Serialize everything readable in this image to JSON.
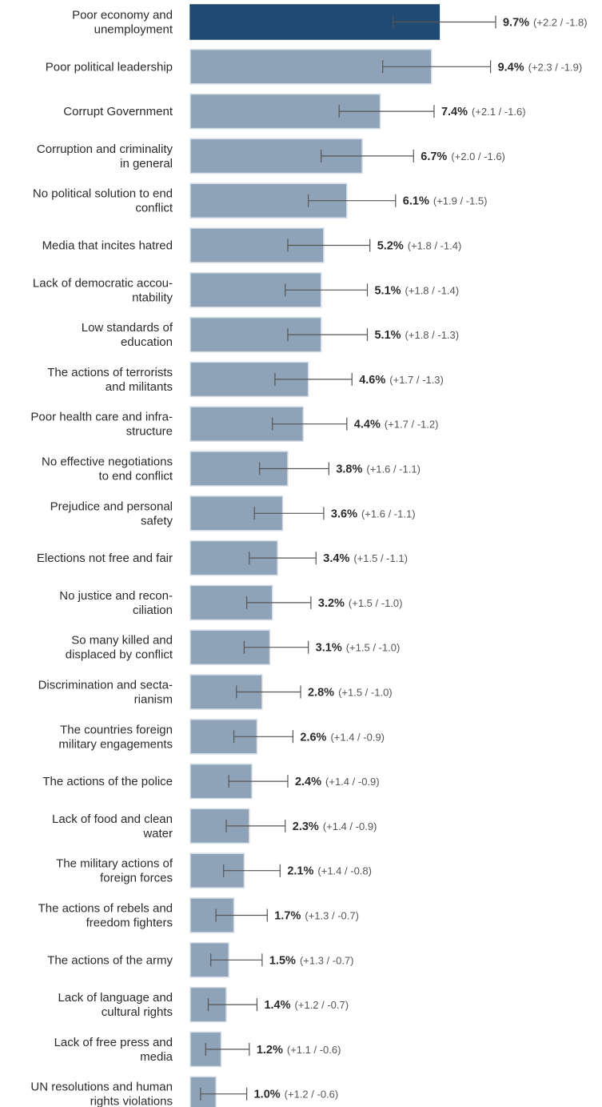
{
  "chart_data": {
    "type": "bar",
    "orientation": "horizontal",
    "colors": {
      "highlight": "#1f4a73",
      "bar": "#8fa3b8",
      "bar_edge": "#d4dde6"
    },
    "highlight_index": 0,
    "grid": false,
    "categories": [
      "Poor economy and unemployment",
      "Poor political leadership",
      "Corrupt Government",
      "Corruption and criminality in general",
      "No political solution to end conflict",
      "Media that incites hatred",
      "Lack of democratic accountability",
      "Low standards of education",
      "The actions of terrorists and militants",
      "Poor health care and infrastructure",
      "No effective negotiations to end conflict",
      "Prejudice and personal safety",
      "Elections not free and fair",
      "No justice and reconciliation",
      "So many killed and displaced by conflict",
      "Discrimination and sectarianism",
      "The countries foreign military engagements",
      "The actions of the police",
      "Lack of food and clean water",
      "The military actions of foreign forces",
      "The actions of rebels and freedom fighters",
      "The actions of the army",
      "Lack of language and cultural rights",
      "Lack of free press and media",
      "UN resolutions and human rights violations"
    ],
    "label_lines": [
      [
        "Poor economy and",
        "unemployment"
      ],
      [
        "Poor political leadership"
      ],
      [
        "Corrupt Government"
      ],
      [
        "Corruption and criminality",
        "in general"
      ],
      [
        "No political solution to end",
        "conflict"
      ],
      [
        "Media that incites hatred"
      ],
      [
        "Lack of democratic accou-",
        "ntability"
      ],
      [
        "Low standards of",
        "education"
      ],
      [
        "The actions of terrorists",
        "and militants"
      ],
      [
        "Poor health care and infra-",
        "structure"
      ],
      [
        "No effective negotiations",
        "to end conflict"
      ],
      [
        "Prejudice and personal",
        "safety"
      ],
      [
        "Elections not free and fair"
      ],
      [
        "No justice and recon-",
        "ciliation"
      ],
      [
        "So many killed and",
        "displaced by conflict"
      ],
      [
        "Discrimination and secta-",
        "rianism"
      ],
      [
        "The countries foreign",
        "military engagements"
      ],
      [
        "The actions of the police"
      ],
      [
        "Lack of food and clean",
        "water"
      ],
      [
        "The military actions of",
        "foreign forces"
      ],
      [
        "The actions of rebels and",
        "freedom fighters"
      ],
      [
        "The actions of the army"
      ],
      [
        "Lack of language and",
        "cultural rights"
      ],
      [
        "Lack of free press and",
        "media"
      ],
      [
        "UN resolutions and human",
        "rights violations"
      ]
    ],
    "values": [
      9.7,
      9.4,
      7.4,
      6.7,
      6.1,
      5.2,
      5.1,
      5.1,
      4.6,
      4.4,
      3.8,
      3.6,
      3.4,
      3.2,
      3.1,
      2.8,
      2.6,
      2.4,
      2.3,
      2.1,
      1.7,
      1.5,
      1.4,
      1.2,
      1.0
    ],
    "value_labels": [
      "9.7%",
      "9.4%",
      "7.4%",
      "6.7%",
      "6.1%",
      "5.2%",
      "5.1%",
      "5.1%",
      "4.6%",
      "4.4%",
      "3.8%",
      "3.6%",
      "3.4%",
      "3.2%",
      "3.1%",
      "2.8%",
      "2.6%",
      "2.4%",
      "2.3%",
      "2.1%",
      "1.7%",
      "1.5%",
      "1.4%",
      "1.2%",
      "1.0%"
    ],
    "error_plus": [
      2.2,
      2.3,
      2.1,
      2.0,
      1.9,
      1.8,
      1.8,
      1.8,
      1.7,
      1.7,
      1.6,
      1.6,
      1.5,
      1.5,
      1.5,
      1.5,
      1.4,
      1.4,
      1.4,
      1.4,
      1.3,
      1.3,
      1.2,
      1.1,
      1.2
    ],
    "error_minus": [
      1.8,
      1.9,
      1.6,
      1.6,
      1.5,
      1.4,
      1.4,
      1.3,
      1.3,
      1.2,
      1.1,
      1.1,
      1.1,
      1.0,
      1.0,
      1.0,
      0.9,
      0.9,
      0.9,
      0.8,
      0.7,
      0.7,
      0.7,
      0.6,
      0.6
    ],
    "error_labels": [
      "(+2.2 / -1.8)",
      "(+2.3 / -1.9)",
      "(+2.1 / -1.6)",
      "(+2.0 / -1.6)",
      "(+1.9 / -1.5)",
      "(+1.8 / -1.4)",
      "(+1.8 / -1.4)",
      "(+1.8 / -1.3)",
      "(+1.7 / -1.3)",
      "(+1.7 / -1.2)",
      "(+1.6 / -1.1)",
      "(+1.6 / -1.1)",
      "(+1.5 / -1.1)",
      "(+1.5 / -1.0)",
      "(+1.5 / -1.0)",
      "(+1.5 / -1.0)",
      "(+1.4 / -0.9)",
      "(+1.4 / -0.9)",
      "(+1.4 / -0.9)",
      "(+1.4 / -0.8)",
      "(+1.3 / -0.7)",
      "(+1.3 / -0.7)",
      "(+1.2 / -0.7)",
      "(+1.1 / -0.6)",
      "(+1.2 / -0.6)"
    ]
  }
}
